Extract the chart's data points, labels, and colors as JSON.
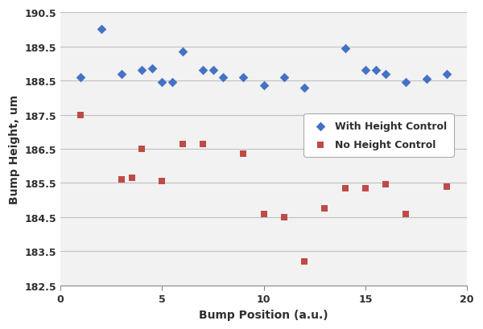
{
  "blue_x": [
    1,
    2,
    3,
    4,
    4.5,
    5,
    5.5,
    6,
    7,
    7.5,
    8,
    9,
    10,
    11,
    12,
    14,
    15,
    15.5,
    16,
    17,
    18,
    19
  ],
  "blue_y": [
    188.6,
    190.0,
    188.7,
    188.8,
    188.85,
    188.45,
    188.45,
    189.35,
    188.8,
    188.8,
    188.6,
    188.6,
    188.35,
    188.6,
    188.3,
    189.45,
    188.8,
    188.8,
    188.7,
    188.45,
    188.55,
    188.7
  ],
  "red_x": [
    1,
    3,
    3.5,
    4,
    5,
    6,
    7,
    9,
    10,
    11,
    12,
    13,
    14,
    15,
    16,
    17,
    19
  ],
  "red_y": [
    187.5,
    185.6,
    185.65,
    186.5,
    185.57,
    186.65,
    186.65,
    186.35,
    184.6,
    184.5,
    183.2,
    184.75,
    185.35,
    185.35,
    185.47,
    184.6,
    185.4
  ],
  "xlabel": "Bump Position (a.u.)",
  "ylabel": "Bump Height, um",
  "xlim": [
    0,
    20
  ],
  "ylim": [
    182.5,
    190.5
  ],
  "yticks": [
    182.5,
    183.5,
    184.5,
    185.5,
    186.5,
    187.5,
    188.5,
    189.5,
    190.5
  ],
  "xticks": [
    0,
    5,
    10,
    15,
    20
  ],
  "blue_label": "With Height Control",
  "red_label": "No Height Control",
  "blue_color": "#4472C4",
  "red_color": "#BE4B48",
  "background_color": "#FFFFFF",
  "grid_color": "#C0C0C0",
  "plot_bg": "#F2F2F2"
}
